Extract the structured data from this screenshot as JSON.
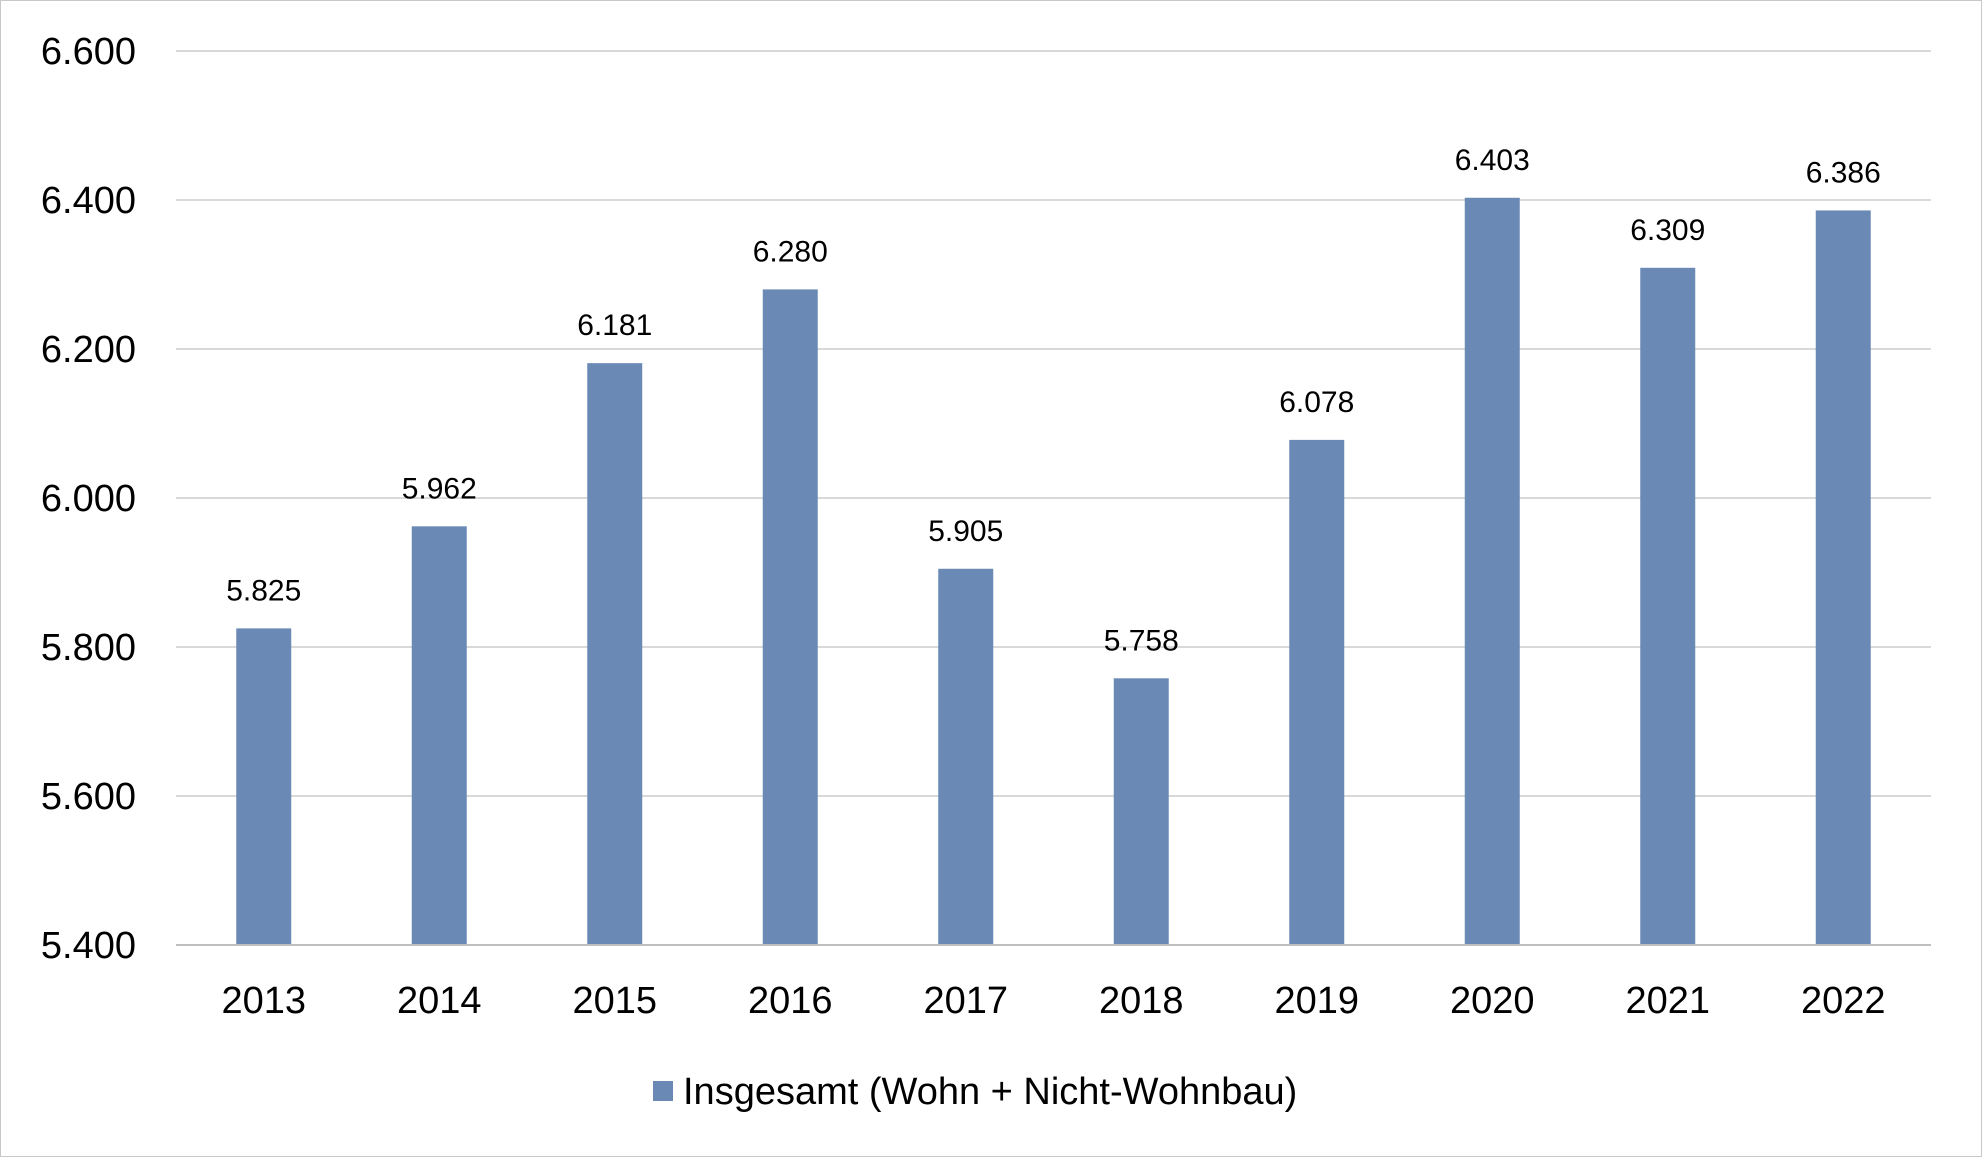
{
  "chart_data": {
    "type": "bar",
    "categories": [
      "2013",
      "2014",
      "2015",
      "2016",
      "2017",
      "2018",
      "2019",
      "2020",
      "2021",
      "2022"
    ],
    "series": [
      {
        "name": "Insgesamt (Wohn + Nicht-Wohnbau)",
        "values": [
          5825,
          5962,
          6181,
          6280,
          5905,
          5758,
          6078,
          6403,
          6309,
          6386
        ],
        "data_labels": [
          "5.825",
          "5.962",
          "6.181",
          "6.280",
          "5.905",
          "5.758",
          "6.078",
          "6.403",
          "6.309",
          "6.386"
        ],
        "color": "#6a8ab5"
      }
    ],
    "ylim": [
      5400,
      6600
    ],
    "yticks": [
      5400,
      5600,
      5800,
      6000,
      6200,
      6400,
      6600
    ],
    "ytick_labels": [
      "5.400",
      "5.600",
      "5.800",
      "6.000",
      "6.200",
      "6.400",
      "6.600"
    ],
    "grid": true,
    "legend_position": "bottom"
  },
  "legend": {
    "label": "Insgesamt (Wohn + Nicht-Wohnbau)"
  }
}
